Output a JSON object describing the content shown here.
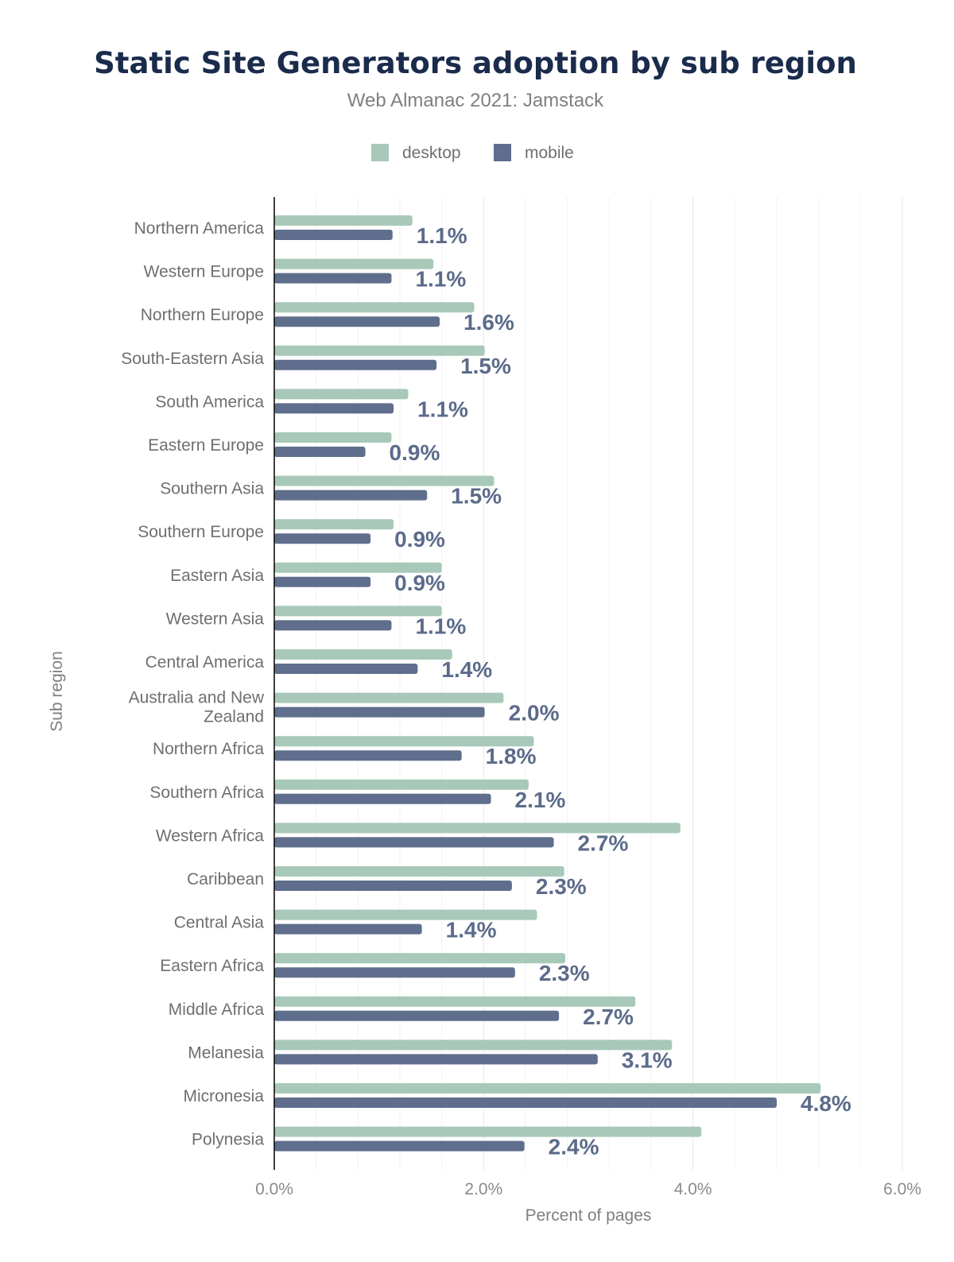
{
  "chart_data": {
    "type": "bar",
    "orientation": "horizontal",
    "title": "Static Site Generators adoption by sub region",
    "subtitle": "Web Almanac 2021: Jamstack",
    "xlabel": "Percent of pages",
    "ylabel": "Sub region",
    "xlim": [
      0,
      6
    ],
    "xticks": [
      "0.0%",
      "2.0%",
      "4.0%",
      "6.0%"
    ],
    "grid": true,
    "legend_position": "top-center",
    "categories": [
      "Northern America",
      "Western Europe",
      "Northern Europe",
      "South-Eastern Asia",
      "South America",
      "Eastern Europe",
      "Southern Asia",
      "Southern Europe",
      "Eastern Asia",
      "Western Asia",
      "Central America",
      "Australia and New Zealand",
      "Northern Africa",
      "Southern Africa",
      "Western Africa",
      "Caribbean",
      "Central Asia",
      "Eastern Africa",
      "Middle Africa",
      "Melanesia",
      "Micronesia",
      "Polynesia"
    ],
    "series": [
      {
        "name": "desktop",
        "color": "#a8c9b9",
        "values": [
          1.32,
          1.52,
          1.91,
          2.01,
          1.28,
          1.12,
          2.1,
          1.14,
          1.6,
          1.6,
          1.7,
          2.19,
          2.48,
          2.43,
          3.88,
          2.77,
          2.51,
          2.78,
          3.45,
          3.8,
          5.22,
          4.08
        ]
      },
      {
        "name": "mobile",
        "color": "#5f6e8c",
        "values": [
          1.13,
          1.12,
          1.58,
          1.55,
          1.14,
          0.87,
          1.46,
          0.92,
          0.92,
          1.12,
          1.37,
          2.01,
          1.79,
          2.07,
          2.67,
          2.27,
          1.41,
          2.3,
          2.72,
          3.09,
          4.8,
          2.39
        ],
        "data_labels": [
          "1.1%",
          "1.1%",
          "1.6%",
          "1.5%",
          "1.1%",
          "0.9%",
          "1.5%",
          "0.9%",
          "0.9%",
          "1.1%",
          "1.4%",
          "2.0%",
          "1.8%",
          "2.1%",
          "2.7%",
          "2.3%",
          "1.4%",
          "2.3%",
          "2.7%",
          "3.1%",
          "4.8%",
          "2.4%"
        ]
      }
    ]
  }
}
